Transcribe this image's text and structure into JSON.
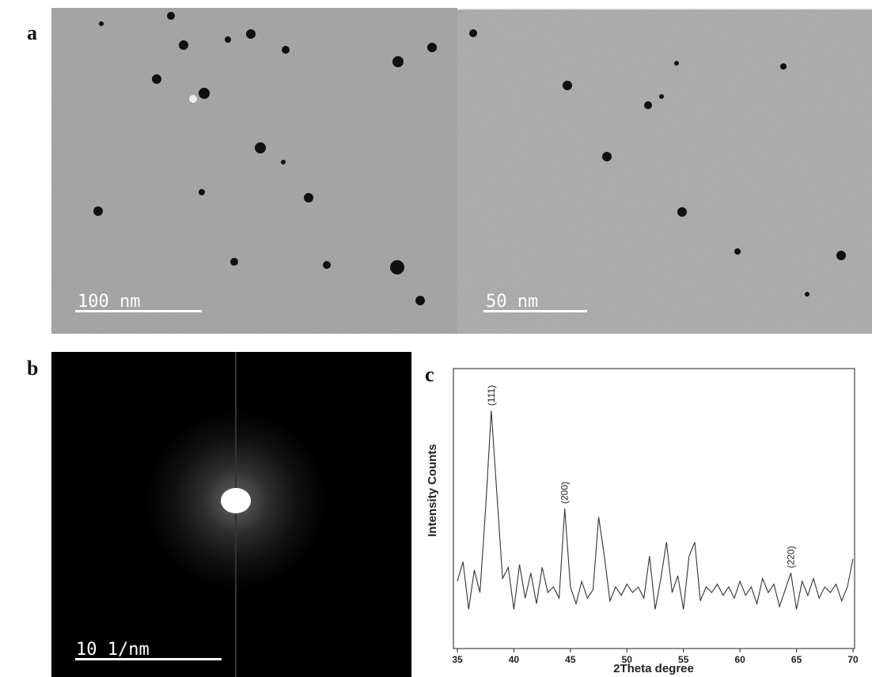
{
  "panels": {
    "a": {
      "label": "a",
      "scale_bars": [
        "100 nm",
        "50 nm"
      ]
    },
    "b": {
      "label": "b",
      "scale_bar": "10 1/nm"
    }
  },
  "chart_data": {
    "type": "line",
    "panel_label": "c",
    "xlabel": "2Theta degree",
    "ylabel": "Intensity Counts",
    "color": "#333333",
    "x": [
      35,
      35.5,
      36,
      36.5,
      37,
      37.5,
      38,
      38.5,
      39,
      39.5,
      40,
      40.5,
      41,
      41.5,
      42,
      42.5,
      43,
      43.5,
      44,
      44.5,
      45,
      45.5,
      46,
      46.5,
      47,
      47.5,
      48,
      48.5,
      49,
      49.5,
      50,
      50.5,
      51,
      51.5,
      52,
      52.5,
      53,
      53.5,
      54,
      54.5,
      55,
      55.5,
      56,
      56.5,
      57,
      57.5,
      58,
      58.5,
      59,
      59.5,
      60,
      60.5,
      61,
      61.5,
      62,
      62.5,
      63,
      63.5,
      64,
      64.5,
      65,
      65.5,
      66,
      66.5,
      67,
      67.5,
      68,
      68.5,
      69,
      69.5,
      70
    ],
    "values": [
      24,
      31,
      14,
      28,
      20,
      50,
      85,
      55,
      25,
      29,
      14,
      30,
      18,
      27,
      16,
      29,
      20,
      22,
      18,
      50,
      22,
      16,
      24,
      18,
      21,
      47,
      33,
      17,
      22,
      19,
      23,
      20,
      22,
      18,
      33,
      14,
      25,
      38,
      20,
      26,
      14,
      33,
      38,
      17,
      22,
      20,
      23,
      19,
      22,
      18,
      24,
      19,
      22,
      16,
      25,
      20,
      23,
      15,
      21,
      27,
      14,
      24,
      19,
      25,
      18,
      22,
      20,
      23,
      17,
      22,
      32
    ],
    "xlim": [
      35,
      70
    ],
    "ylim": [
      0,
      100
    ],
    "xticks": [
      35,
      40,
      45,
      50,
      55,
      60,
      65,
      70
    ],
    "annotations": [
      {
        "text": "(111)",
        "x": 38
      },
      {
        "text": "(200)",
        "x": 44.5
      },
      {
        "text": "(220)",
        "x": 64.5
      }
    ]
  }
}
